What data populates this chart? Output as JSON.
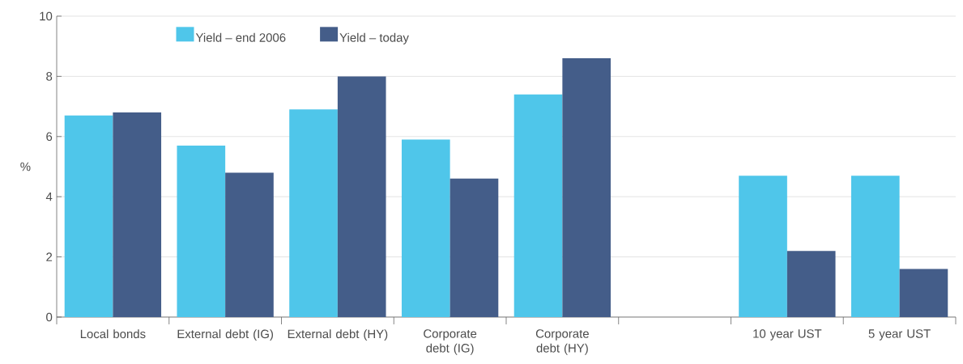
{
  "chart_data": {
    "type": "bar",
    "ylabel": "%",
    "categories": [
      "Local bonds",
      "External debt (IG)",
      "External debt (HY)",
      "Corporate debt (IG)",
      "Corporate debt (HY)",
      null,
      "10 year UST",
      "5 year UST"
    ],
    "series": [
      {
        "name": "Yield – end 2006",
        "color": "#4fc6ea",
        "values": [
          6.7,
          5.7,
          6.9,
          5.9,
          7.4,
          null,
          4.7,
          4.7
        ]
      },
      {
        "name": "Yield – today",
        "color": "#445d89",
        "values": [
          6.8,
          4.8,
          8.0,
          4.6,
          8.6,
          null,
          2.2,
          1.6
        ]
      }
    ],
    "ylim": [
      0,
      10
    ],
    "yticks": [
      0,
      2,
      4,
      6,
      8,
      10
    ],
    "grid": "y",
    "legend": "top left"
  }
}
